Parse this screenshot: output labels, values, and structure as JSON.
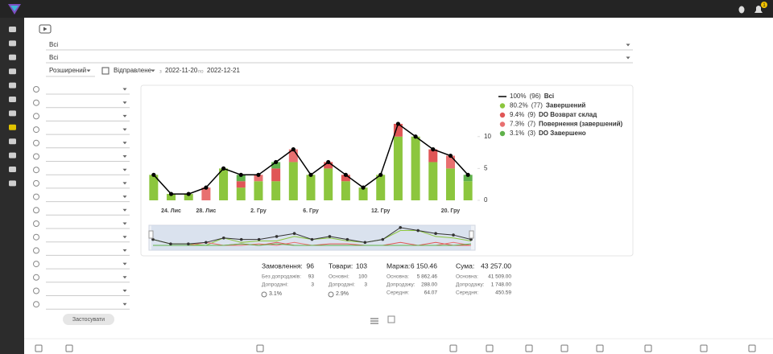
{
  "header": {
    "notifications": "1"
  },
  "filters": {
    "group": "Всі",
    "product": "Всі",
    "mode": "Розширений",
    "status": "Відправлене",
    "from_label": "з",
    "from": "2022-11-20",
    "to_label": "по",
    "to": "2022-12-21",
    "apply": "Застосувати"
  },
  "chart": {
    "type": "bar",
    "stacked": true,
    "categories": [
      null,
      "24. Лис",
      null,
      "28. Лис",
      null,
      null,
      "2. Гру",
      null,
      null,
      "6. Гру",
      null,
      null,
      null,
      "12. Гру",
      null,
      null,
      null,
      "20. Гру",
      null
    ],
    "series": [
      {
        "name": "Завершений",
        "share": "80.2%",
        "count": "(77)",
        "color": "#8cc63e",
        "values": [
          4,
          1,
          1,
          0,
          5,
          2,
          3,
          3,
          6,
          4,
          5,
          3,
          2,
          4,
          10,
          10,
          6,
          5,
          3
        ]
      },
      {
        "name": "DO Возврат склад",
        "share": "9.4%",
        "count": "(9)",
        "color": "#e05656",
        "values": [
          0,
          0,
          0,
          0,
          0,
          1,
          0,
          2,
          0,
          0,
          1,
          1,
          0,
          0,
          2,
          0,
          2,
          0,
          0
        ]
      },
      {
        "name": "Повернення (завершений)",
        "share": "7.3%",
        "count": "(7)",
        "color": "#e87070",
        "values": [
          0,
          0,
          0,
          2,
          0,
          0,
          1,
          0,
          2,
          0,
          0,
          0,
          0,
          0,
          0,
          0,
          0,
          2,
          0
        ]
      },
      {
        "name": "DO Завершено",
        "share": "3.1%",
        "count": "(3)",
        "color": "#5fb14a",
        "values": [
          0,
          0,
          0,
          0,
          0,
          1,
          0,
          1,
          0,
          0,
          0,
          0,
          0,
          0,
          0,
          0,
          0,
          0,
          1
        ]
      }
    ],
    "total": {
      "name": "Всі",
      "share": "100%",
      "count": "(96)",
      "color": "#000000",
      "values": [
        4,
        1,
        1,
        2,
        5,
        4,
        4,
        6,
        8,
        4,
        6,
        4,
        2,
        4,
        12,
        10,
        8,
        7,
        4
      ]
    },
    "ylim": [
      0,
      13
    ],
    "yticks": [
      0,
      5,
      10
    ],
    "grid": false
  },
  "summary": [
    {
      "title": "Замовлення:",
      "value": "96",
      "rows": [
        [
          "Без допродажів:",
          "93"
        ],
        [
          "Допродані:",
          "3"
        ]
      ],
      "note": "3.1%"
    },
    {
      "title": "Товари:",
      "value": "103",
      "rows": [
        [
          "Основні:",
          "100"
        ],
        [
          "Допродані:",
          "3"
        ]
      ],
      "note": "2.9%"
    },
    {
      "title": "Маржа:",
      "value": "6 150.46",
      "rows": [
        [
          "Основна:",
          "5 862.46"
        ],
        [
          "Допродажу:",
          "288.00"
        ],
        [
          "Середня:",
          "64.07"
        ]
      ]
    },
    {
      "title": "Сума:",
      "value": "43 257.00",
      "rows": [
        [
          "Основна:",
          "41 509.00"
        ],
        [
          "Допродажу:",
          "1 748.00"
        ],
        [
          "Середня:",
          "450.59"
        ]
      ]
    }
  ]
}
